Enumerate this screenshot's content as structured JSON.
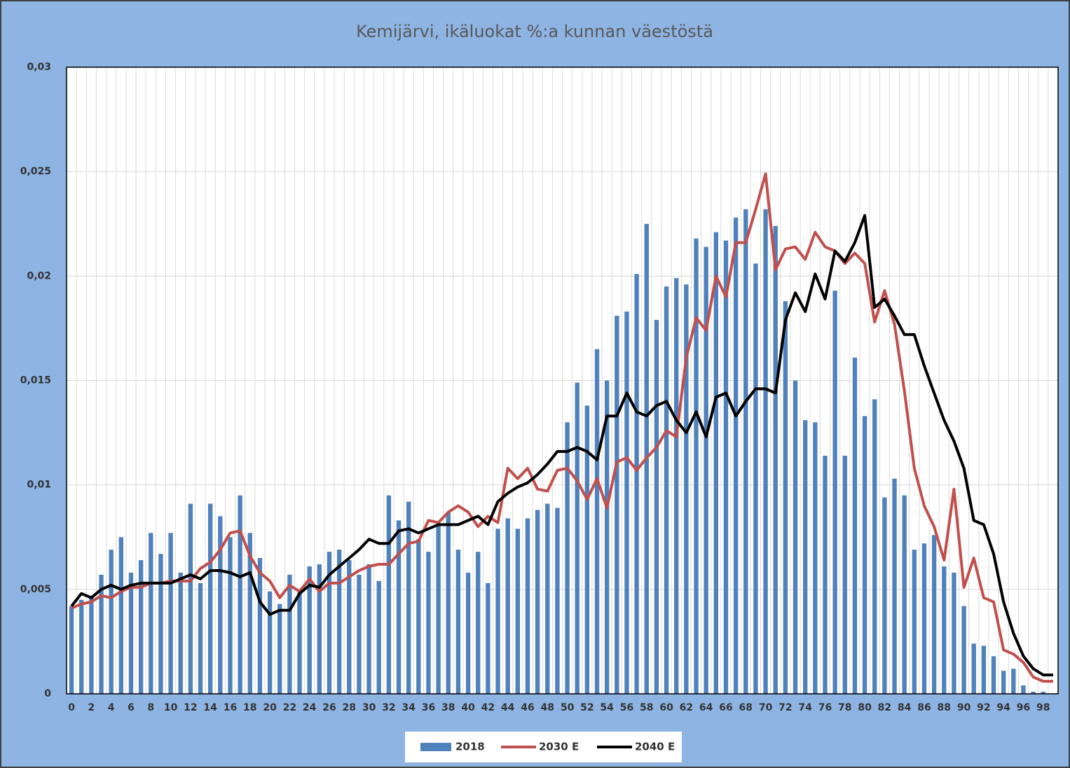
{
  "chart_data": {
    "type": "bar_line",
    "title": "Kemijärvi, ikäluokat %:a kunnan väestöstä",
    "categories": [
      "0",
      null,
      "2",
      null,
      "4",
      null,
      "6",
      null,
      "8",
      null,
      "10",
      null,
      "12",
      null,
      "14",
      null,
      "16",
      null,
      "18",
      null,
      "20",
      null,
      "22",
      null,
      "24",
      null,
      "26",
      null,
      "28",
      null,
      "30",
      null,
      "32",
      null,
      "34",
      null,
      "36",
      null,
      "38",
      null,
      "40",
      null,
      "42",
      null,
      "44",
      null,
      "46",
      null,
      "48",
      null,
      "50",
      null,
      "52",
      null,
      "54",
      null,
      "56",
      null,
      "58",
      null,
      "60",
      null,
      "62",
      null,
      "64",
      null,
      "66",
      null,
      "68",
      null,
      "70",
      null,
      "72",
      null,
      "74",
      null,
      "76",
      null,
      "78",
      null,
      "80",
      null,
      "82",
      null,
      "84",
      null,
      "86",
      null,
      "88",
      null,
      "90",
      null,
      "92",
      null,
      "94",
      null,
      "96",
      null,
      "98",
      null
    ],
    "ylim": [
      0,
      0.03
    ],
    "yticks": [
      0,
      {
        "value": 0.005,
        "label": "0,005"
      },
      {
        "value": 0.01,
        "label": "0,01"
      },
      {
        "value": 0.015,
        "label": "0,015"
      },
      {
        "value": 0.02,
        "label": "0,02"
      },
      {
        "value": 0.025,
        "label": "0,025"
      },
      {
        "value": 0.03,
        "label": "0,03"
      }
    ],
    "grid": true,
    "legend": "bottom",
    "series": [
      {
        "name": "2018",
        "type": "bar",
        "color": "#4f81bd",
        "values": [
          0.0042,
          0.0045,
          0.0047,
          0.0057,
          0.0069,
          0.0075,
          0.0058,
          0.0064,
          0.0077,
          0.0067,
          0.0077,
          0.0058,
          0.0091,
          0.0053,
          0.0091,
          0.0085,
          0.0075,
          0.0095,
          0.0077,
          0.0065,
          0.0049,
          0.0043,
          0.0057,
          0.005,
          0.0061,
          0.0062,
          0.0068,
          0.0069,
          0.0064,
          0.0057,
          0.0062,
          0.0054,
          0.0095,
          0.0083,
          0.0092,
          0.0074,
          0.0068,
          0.0081,
          0.0087,
          0.0069,
          0.0058,
          0.0068,
          0.0053,
          0.0079,
          0.0084,
          0.0079,
          0.0084,
          0.0088,
          0.0091,
          0.0089,
          0.013,
          0.0149,
          0.0138,
          0.0165,
          0.015,
          0.0181,
          0.0183,
          0.0201,
          0.0225,
          0.0179,
          0.0195,
          0.0199,
          0.0196,
          0.0218,
          0.0214,
          0.0221,
          0.0217,
          0.0228,
          0.0232,
          0.0206,
          0.0232,
          0.0224,
          0.0188,
          0.015,
          0.0131,
          0.013,
          0.0114,
          0.0193,
          0.0114,
          0.0161,
          0.0133,
          0.0141,
          0.0094,
          0.0103,
          0.0095,
          0.0069,
          0.0072,
          0.0076,
          0.0061,
          0.0058,
          0.0042,
          0.0024,
          0.0023,
          0.0018,
          0.0011,
          0.0012,
          0.0004,
          0.0001,
          0.0001,
          0
        ]
      },
      {
        "name": "2030 E",
        "type": "line",
        "color": "#c0504d",
        "values": [
          0.0041,
          0.0043,
          0.0044,
          0.0047,
          0.0046,
          0.0049,
          0.0051,
          0.0051,
          0.0053,
          0.0053,
          0.0054,
          0.0054,
          0.0054,
          0.006,
          0.0063,
          0.0069,
          0.0077,
          0.0078,
          0.0066,
          0.0058,
          0.0054,
          0.0046,
          0.0052,
          0.0049,
          0.0055,
          0.0049,
          0.0053,
          0.0053,
          0.0056,
          0.0059,
          0.0061,
          0.0062,
          0.0062,
          0.0067,
          0.0072,
          0.0073,
          0.0083,
          0.0082,
          0.0087,
          0.009,
          0.0087,
          0.008,
          0.0085,
          0.0082,
          0.0108,
          0.0103,
          0.0108,
          0.0098,
          0.0097,
          0.0107,
          0.0108,
          0.0102,
          0.0093,
          0.0103,
          0.0089,
          0.0111,
          0.0113,
          0.0107,
          0.0113,
          0.0118,
          0.0126,
          0.0123,
          0.0161,
          0.018,
          0.0174,
          0.02,
          0.019,
          0.0216,
          0.0216,
          0.0232,
          0.0249,
          0.0203,
          0.0213,
          0.0214,
          0.0208,
          0.0221,
          0.0214,
          0.0212,
          0.0206,
          0.0211,
          0.0206,
          0.0178,
          0.0193,
          0.0177,
          0.0145,
          0.0108,
          0.009,
          0.008,
          0.0064,
          0.0098,
          0.0051,
          0.0065,
          0.0046,
          0.0044,
          0.0021,
          0.0019,
          0.0015,
          0.0008,
          0.0006,
          0.0006
        ]
      },
      {
        "name": "2040 E",
        "type": "line",
        "color": "#000000",
        "values": [
          0.0042,
          0.0048,
          0.0046,
          0.005,
          0.0052,
          0.005,
          0.0052,
          0.0053,
          0.0053,
          0.0053,
          0.0053,
          0.0055,
          0.0057,
          0.0055,
          0.0059,
          0.0059,
          0.0058,
          0.0056,
          0.0058,
          0.0044,
          0.0038,
          0.004,
          0.004,
          0.0048,
          0.0052,
          0.0051,
          0.0057,
          0.0061,
          0.0065,
          0.0069,
          0.0074,
          0.0072,
          0.0072,
          0.0078,
          0.0079,
          0.0077,
          0.0079,
          0.0081,
          0.0081,
          0.0081,
          0.0083,
          0.0085,
          0.0081,
          0.0092,
          0.0096,
          0.0099,
          0.0101,
          0.0105,
          0.011,
          0.0116,
          0.0116,
          0.0118,
          0.0116,
          0.0112,
          0.0133,
          0.0133,
          0.0144,
          0.0135,
          0.0133,
          0.0138,
          0.014,
          0.0131,
          0.0125,
          0.0135,
          0.0123,
          0.0142,
          0.0144,
          0.0133,
          0.014,
          0.0146,
          0.0146,
          0.0144,
          0.0179,
          0.0192,
          0.0183,
          0.0201,
          0.0189,
          0.0212,
          0.0207,
          0.0216,
          0.0229,
          0.0185,
          0.0189,
          0.0181,
          0.0172,
          0.0172,
          0.0157,
          0.0144,
          0.0131,
          0.0121,
          0.0108,
          0.0083,
          0.0081,
          0.0067,
          0.0044,
          0.0029,
          0.0018,
          0.0012,
          0.0009,
          0.0009
        ]
      }
    ]
  }
}
